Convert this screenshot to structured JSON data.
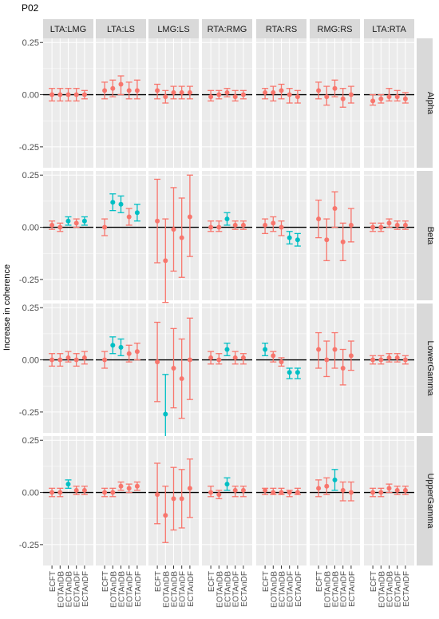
{
  "title": "P02",
  "ylabel": "Increase in coherence",
  "columns": [
    "LTA:LMG",
    "LTA:LS",
    "LMG:LS",
    "RTA:RMG",
    "RTA:RS",
    "RMG:RS",
    "LTA:RTA"
  ],
  "rows": [
    "Alpha",
    "Beta",
    "LowerGamma",
    "UpperGamma"
  ],
  "conditions": [
    "ECFT",
    "EOTAnDB",
    "ECTAnDB",
    "EOTAnDF",
    "ECTAnDF"
  ],
  "yticks": [
    "0.25",
    "0.00",
    "-0.25"
  ],
  "colors": {
    "nonsignificant": "#F8766D",
    "significant": "#00BFC4",
    "panel_bg": "#EBEBEB",
    "strip_bg": "#D9D9D9",
    "zero_line": "#000000"
  },
  "chart_data": {
    "type": "scatter",
    "description_of_marks": "point estimate with error bar per condition; color indicates significance",
    "x": [
      "ECFT",
      "EOTAnDB",
      "ECTAnDB",
      "EOTAnDF",
      "ECTAnDF"
    ],
    "ylim": [
      -0.35,
      0.27
    ],
    "facet_rows": [
      "Alpha",
      "Beta",
      "LowerGamma",
      "UpperGamma"
    ],
    "facet_cols": [
      "LTA:LMG",
      "LTA:LS",
      "LMG:LS",
      "RTA:RMG",
      "RTA:RS",
      "RMG:RS",
      "LTA:RTA"
    ],
    "panels": {
      "Alpha": {
        "LTA:LMG": {
          "y": [
            0.0,
            0.0,
            0.0,
            0.0,
            0.0
          ],
          "lo": [
            -0.03,
            -0.03,
            -0.03,
            -0.03,
            -0.02
          ],
          "hi": [
            0.03,
            0.03,
            0.03,
            0.03,
            0.02
          ],
          "sig": [
            0,
            0,
            0,
            0,
            0
          ]
        },
        "LTA:LS": {
          "y": [
            0.02,
            0.03,
            0.05,
            0.02,
            0.02
          ],
          "lo": [
            -0.02,
            -0.01,
            0.0,
            -0.02,
            -0.02
          ],
          "hi": [
            0.06,
            0.07,
            0.09,
            0.06,
            0.07
          ],
          "sig": [
            0,
            0,
            0,
            0,
            0
          ]
        },
        "LMG:LS": {
          "y": [
            0.02,
            -0.01,
            0.01,
            0.01,
            0.01
          ],
          "lo": [
            -0.02,
            -0.04,
            -0.02,
            -0.02,
            -0.02
          ],
          "hi": [
            0.05,
            0.02,
            0.04,
            0.04,
            0.04
          ],
          "sig": [
            0,
            0,
            0,
            0,
            0
          ]
        },
        "RTA:RMG": {
          "y": [
            -0.01,
            0.0,
            0.01,
            -0.01,
            0.0
          ],
          "lo": [
            -0.03,
            -0.02,
            -0.01,
            -0.03,
            -0.02
          ],
          "hi": [
            0.02,
            0.02,
            0.03,
            0.02,
            0.02
          ],
          "sig": [
            0,
            0,
            0,
            0,
            0
          ]
        },
        "RTA:RS": {
          "y": [
            0.01,
            0.01,
            0.02,
            0.0,
            -0.01
          ],
          "lo": [
            -0.02,
            -0.03,
            -0.02,
            -0.04,
            -0.04
          ],
          "hi": [
            0.03,
            0.04,
            0.05,
            0.03,
            0.02
          ],
          "sig": [
            0,
            0,
            0,
            0,
            0
          ]
        },
        "RMG:RS": {
          "y": [
            0.02,
            -0.01,
            0.03,
            -0.02,
            0.0
          ],
          "lo": [
            -0.02,
            -0.05,
            -0.01,
            -0.06,
            -0.04
          ],
          "hi": [
            0.06,
            0.04,
            0.07,
            0.03,
            0.04
          ],
          "sig": [
            0,
            0,
            0,
            0,
            0
          ]
        },
        "LTA:RTA": {
          "y": [
            -0.03,
            -0.02,
            -0.01,
            -0.01,
            -0.02
          ],
          "lo": [
            -0.05,
            -0.04,
            -0.03,
            -0.03,
            -0.04
          ],
          "hi": [
            0.0,
            0.0,
            0.03,
            0.02,
            0.01
          ],
          "sig": [
            0,
            0,
            0,
            0,
            0
          ]
        }
      },
      "Beta": {
        "LTA:LMG": {
          "y": [
            0.01,
            0.0,
            0.03,
            0.02,
            0.03
          ],
          "lo": [
            -0.01,
            -0.02,
            0.01,
            0.0,
            0.01
          ],
          "hi": [
            0.03,
            0.02,
            0.05,
            0.04,
            0.05
          ],
          "sig": [
            0,
            0,
            1,
            0,
            1
          ]
        },
        "LTA:LS": {
          "y": [
            0.0,
            0.12,
            0.11,
            0.05,
            0.07
          ],
          "lo": [
            -0.04,
            0.08,
            0.07,
            0.01,
            0.03
          ],
          "hi": [
            0.04,
            0.16,
            0.15,
            0.09,
            0.11
          ],
          "sig": [
            0,
            1,
            1,
            0,
            1
          ]
        },
        "LMG:LS": {
          "y": [
            0.03,
            -0.16,
            -0.01,
            -0.05,
            0.05
          ],
          "lo": [
            -0.17,
            -0.36,
            -0.21,
            -0.24,
            -0.14
          ],
          "hi": [
            0.23,
            0.04,
            0.19,
            0.14,
            0.25
          ],
          "sig": [
            0,
            0,
            0,
            0,
            0
          ]
        },
        "RTA:RMG": {
          "y": [
            0.0,
            0.0,
            0.04,
            0.01,
            0.01
          ],
          "lo": [
            -0.02,
            -0.02,
            0.01,
            -0.01,
            -0.01
          ],
          "hi": [
            0.03,
            0.03,
            0.07,
            0.03,
            0.03
          ],
          "sig": [
            0,
            0,
            1,
            0,
            0
          ]
        },
        "RTA:RS": {
          "y": [
            0.01,
            0.02,
            0.0,
            -0.05,
            -0.06
          ],
          "lo": [
            -0.03,
            -0.02,
            -0.04,
            -0.08,
            -0.09
          ],
          "hi": [
            0.04,
            0.05,
            0.03,
            -0.02,
            -0.03
          ],
          "sig": [
            0,
            0,
            0,
            1,
            1
          ]
        },
        "RMG:RS": {
          "y": [
            0.04,
            -0.06,
            0.09,
            -0.07,
            0.01
          ],
          "lo": [
            -0.05,
            -0.16,
            0.0,
            -0.16,
            -0.07
          ],
          "hi": [
            0.13,
            0.04,
            0.17,
            0.02,
            0.09
          ],
          "sig": [
            0,
            0,
            0,
            0,
            0
          ]
        },
        "LTA:RTA": {
          "y": [
            0.0,
            0.0,
            0.02,
            0.01,
            0.01
          ],
          "lo": [
            -0.02,
            -0.02,
            0.0,
            -0.01,
            -0.01
          ],
          "hi": [
            0.02,
            0.02,
            0.04,
            0.03,
            0.03
          ],
          "sig": [
            0,
            0,
            0,
            0,
            0
          ]
        }
      },
      "LowerGamma": {
        "LTA:LMG": {
          "y": [
            0.0,
            0.0,
            0.01,
            0.0,
            0.01
          ],
          "lo": [
            -0.03,
            -0.03,
            -0.01,
            -0.03,
            -0.02
          ],
          "hi": [
            0.03,
            0.03,
            0.04,
            0.03,
            0.04
          ],
          "sig": [
            0,
            0,
            0,
            0,
            0
          ]
        },
        "LTA:LS": {
          "y": [
            0.0,
            0.07,
            0.06,
            0.03,
            0.04
          ],
          "lo": [
            -0.04,
            0.03,
            0.02,
            -0.01,
            0.0
          ],
          "hi": [
            0.04,
            0.11,
            0.1,
            0.07,
            0.08
          ],
          "sig": [
            0,
            1,
            1,
            0,
            0
          ]
        },
        "LMG:LS": {
          "y": [
            -0.01,
            -0.26,
            -0.04,
            -0.09,
            0.0
          ],
          "lo": [
            -0.2,
            -0.45,
            -0.23,
            -0.28,
            -0.19
          ],
          "hi": [
            0.18,
            -0.07,
            0.15,
            0.1,
            0.2
          ],
          "sig": [
            0,
            1,
            0,
            0,
            0
          ]
        },
        "RTA:RMG": {
          "y": [
            0.01,
            0.0,
            0.05,
            0.01,
            0.01
          ],
          "lo": [
            -0.02,
            -0.02,
            0.02,
            -0.02,
            -0.02
          ],
          "hi": [
            0.04,
            0.03,
            0.08,
            0.04,
            0.03
          ],
          "sig": [
            0,
            0,
            1,
            0,
            0
          ]
        },
        "RTA:RS": {
          "y": [
            0.05,
            0.02,
            -0.01,
            -0.06,
            -0.06
          ],
          "lo": [
            0.02,
            -0.01,
            -0.03,
            -0.09,
            -0.09
          ],
          "hi": [
            0.08,
            0.04,
            0.01,
            -0.04,
            -0.04
          ],
          "sig": [
            1,
            0,
            0,
            1,
            1
          ]
        },
        "RMG:RS": {
          "y": [
            0.05,
            0.0,
            0.05,
            -0.04,
            0.02
          ],
          "lo": [
            -0.04,
            -0.08,
            -0.04,
            -0.12,
            -0.05
          ],
          "hi": [
            0.13,
            0.09,
            0.13,
            0.05,
            0.09
          ],
          "sig": [
            0,
            0,
            0,
            0,
            0
          ]
        },
        "LTA:RTA": {
          "y": [
            0.0,
            0.0,
            0.01,
            0.01,
            0.0
          ],
          "lo": [
            -0.02,
            -0.02,
            -0.01,
            -0.01,
            -0.02
          ],
          "hi": [
            0.02,
            0.02,
            0.03,
            0.03,
            0.02
          ],
          "sig": [
            0,
            0,
            0,
            0,
            0
          ]
        }
      },
      "UpperGamma": {
        "LTA:LMG": {
          "y": [
            0.0,
            0.0,
            0.04,
            0.01,
            0.01
          ],
          "lo": [
            -0.02,
            -0.02,
            0.02,
            -0.01,
            -0.01
          ],
          "hi": [
            0.02,
            0.02,
            0.06,
            0.03,
            0.03
          ],
          "sig": [
            0,
            0,
            1,
            0,
            0
          ]
        },
        "LTA:LS": {
          "y": [
            0.0,
            0.0,
            0.03,
            0.02,
            0.03
          ],
          "lo": [
            -0.02,
            -0.02,
            0.01,
            0.0,
            0.01
          ],
          "hi": [
            0.02,
            0.02,
            0.05,
            0.04,
            0.05
          ],
          "sig": [
            0,
            0,
            0,
            0,
            0
          ]
        },
        "LMG:LS": {
          "y": [
            -0.01,
            -0.11,
            -0.03,
            -0.03,
            0.02
          ],
          "lo": [
            -0.15,
            -0.24,
            -0.18,
            -0.17,
            -0.12
          ],
          "hi": [
            0.14,
            0.03,
            0.12,
            0.11,
            0.16
          ],
          "sig": [
            0,
            0,
            0,
            0,
            0
          ]
        },
        "RTA:RMG": {
          "y": [
            0.0,
            -0.01,
            0.04,
            0.01,
            0.01
          ],
          "lo": [
            -0.02,
            -0.03,
            0.01,
            -0.02,
            -0.02
          ],
          "hi": [
            0.03,
            0.01,
            0.07,
            0.03,
            0.03
          ],
          "sig": [
            0,
            0,
            1,
            0,
            0
          ]
        },
        "RTA:RS": {
          "y": [
            0.01,
            0.0,
            0.0,
            0.0,
            0.0
          ],
          "lo": [
            -0.01,
            -0.01,
            -0.01,
            -0.02,
            -0.01
          ],
          "hi": [
            0.02,
            0.02,
            0.02,
            0.01,
            0.02
          ],
          "sig": [
            0,
            0,
            0,
            0,
            0
          ]
        },
        "RMG:RS": {
          "y": [
            0.02,
            0.03,
            0.06,
            0.01,
            0.0
          ],
          "lo": [
            -0.02,
            -0.01,
            0.01,
            -0.04,
            -0.04
          ],
          "hi": [
            0.06,
            0.07,
            0.11,
            0.05,
            0.05
          ],
          "sig": [
            0,
            0,
            1,
            0,
            0
          ]
        },
        "LTA:RTA": {
          "y": [
            0.0,
            0.0,
            0.02,
            0.01,
            0.01
          ],
          "lo": [
            -0.02,
            -0.02,
            0.0,
            -0.01,
            -0.01
          ],
          "hi": [
            0.02,
            0.02,
            0.04,
            0.03,
            0.03
          ],
          "sig": [
            0,
            0,
            0,
            0,
            0
          ]
        }
      }
    }
  }
}
